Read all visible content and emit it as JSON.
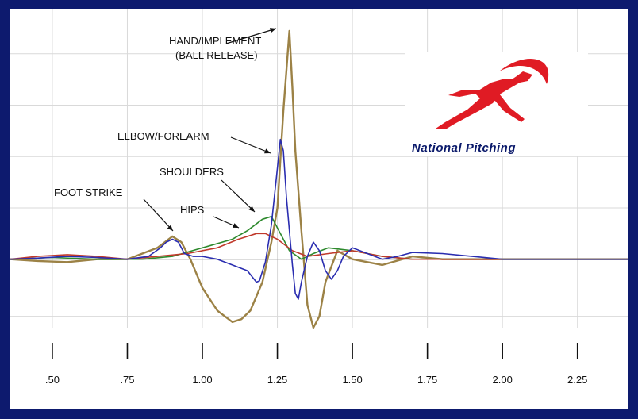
{
  "chart_data": {
    "type": "line",
    "title": "",
    "xlabel": "",
    "ylabel": "",
    "xlim": [
      0.36,
      2.42
    ],
    "ylim": [
      -1.2,
      4.0
    ],
    "grid": true,
    "x_ticks": [
      0.5,
      0.75,
      1.0,
      1.25,
      1.5,
      1.75,
      2.0,
      2.25
    ],
    "x_tick_labels": [
      ".50",
      ".75",
      "1.00",
      "1.25",
      "1.50",
      "1.75",
      "2.00",
      "2.25"
    ],
    "series": [
      {
        "color": "#2a2db0",
        "points": [
          [
            0.36,
            0.0
          ],
          [
            0.45,
            0.02
          ],
          [
            0.55,
            0.05
          ],
          [
            0.65,
            0.03
          ],
          [
            0.75,
            0.0
          ],
          [
            0.82,
            0.05
          ],
          [
            0.86,
            0.2
          ],
          [
            0.88,
            0.3
          ],
          [
            0.9,
            0.35
          ],
          [
            0.92,
            0.3
          ],
          [
            0.94,
            0.1
          ],
          [
            0.97,
            0.05
          ],
          [
            1.0,
            0.05
          ],
          [
            1.05,
            0.0
          ],
          [
            1.1,
            -0.1
          ],
          [
            1.15,
            -0.2
          ],
          [
            1.18,
            -0.4
          ],
          [
            1.19,
            -0.38
          ],
          [
            1.21,
            -0.05
          ],
          [
            1.23,
            0.6
          ],
          [
            1.25,
            1.6
          ],
          [
            1.26,
            2.1
          ],
          [
            1.27,
            1.9
          ],
          [
            1.28,
            1.1
          ],
          [
            1.3,
            -0.1
          ],
          [
            1.31,
            -0.6
          ],
          [
            1.32,
            -0.7
          ],
          [
            1.33,
            -0.4
          ],
          [
            1.35,
            0.05
          ],
          [
            1.37,
            0.3
          ],
          [
            1.39,
            0.15
          ],
          [
            1.41,
            -0.2
          ],
          [
            1.43,
            -0.35
          ],
          [
            1.45,
            -0.2
          ],
          [
            1.47,
            0.05
          ],
          [
            1.5,
            0.2
          ],
          [
            1.55,
            0.1
          ],
          [
            1.6,
            0.0
          ],
          [
            1.65,
            0.05
          ],
          [
            1.7,
            0.12
          ],
          [
            1.8,
            0.1
          ],
          [
            1.9,
            0.05
          ],
          [
            2.0,
            0.0
          ],
          [
            2.2,
            0.0
          ],
          [
            2.42,
            0.0
          ]
        ]
      },
      {
        "color": "#9c8246",
        "points": [
          [
            0.36,
            0.0
          ],
          [
            0.45,
            -0.03
          ],
          [
            0.55,
            -0.05
          ],
          [
            0.65,
            0.0
          ],
          [
            0.75,
            0.0
          ],
          [
            0.85,
            0.2
          ],
          [
            0.9,
            0.4
          ],
          [
            0.93,
            0.3
          ],
          [
            0.96,
            0.0
          ],
          [
            1.0,
            -0.5
          ],
          [
            1.05,
            -0.9
          ],
          [
            1.1,
            -1.1
          ],
          [
            1.13,
            -1.05
          ],
          [
            1.16,
            -0.9
          ],
          [
            1.2,
            -0.4
          ],
          [
            1.23,
            0.3
          ],
          [
            1.25,
            0.9
          ],
          [
            1.27,
            2.6
          ],
          [
            1.29,
            4.0
          ],
          [
            1.3,
            3.0
          ],
          [
            1.31,
            1.9
          ],
          [
            1.33,
            0.5
          ],
          [
            1.35,
            -0.8
          ],
          [
            1.37,
            -1.2
          ],
          [
            1.39,
            -1.0
          ],
          [
            1.41,
            -0.4
          ],
          [
            1.45,
            0.15
          ],
          [
            1.5,
            0.0
          ],
          [
            1.6,
            -0.1
          ],
          [
            1.7,
            0.05
          ],
          [
            1.8,
            0.0
          ],
          [
            2.0,
            0.0
          ],
          [
            2.42,
            0.0
          ]
        ]
      },
      {
        "color": "#2e8a2e",
        "points": [
          [
            0.36,
            0.0
          ],
          [
            0.5,
            0.03
          ],
          [
            0.65,
            0.0
          ],
          [
            0.8,
            0.0
          ],
          [
            0.9,
            0.05
          ],
          [
            1.0,
            0.2
          ],
          [
            1.1,
            0.35
          ],
          [
            1.15,
            0.5
          ],
          [
            1.2,
            0.7
          ],
          [
            1.23,
            0.75
          ],
          [
            1.26,
            0.45
          ],
          [
            1.29,
            0.15
          ],
          [
            1.33,
            0.0
          ],
          [
            1.37,
            0.1
          ],
          [
            1.42,
            0.2
          ],
          [
            1.5,
            0.15
          ],
          [
            1.6,
            0.05
          ],
          [
            1.7,
            0.0
          ],
          [
            2.0,
            0.0
          ],
          [
            2.42,
            0.0
          ]
        ]
      },
      {
        "color": "#c0392b",
        "points": [
          [
            0.36,
            0.0
          ],
          [
            0.45,
            0.05
          ],
          [
            0.55,
            0.08
          ],
          [
            0.65,
            0.05
          ],
          [
            0.75,
            0.0
          ],
          [
            0.85,
            0.05
          ],
          [
            0.95,
            0.1
          ],
          [
            1.05,
            0.2
          ],
          [
            1.12,
            0.35
          ],
          [
            1.18,
            0.45
          ],
          [
            1.21,
            0.45
          ],
          [
            1.25,
            0.35
          ],
          [
            1.3,
            0.15
          ],
          [
            1.35,
            0.05
          ],
          [
            1.42,
            0.1
          ],
          [
            1.5,
            0.15
          ],
          [
            1.6,
            0.05
          ],
          [
            1.7,
            0.0
          ],
          [
            2.0,
            0.0
          ],
          [
            2.42,
            0.0
          ]
        ]
      }
    ],
    "annotations": [
      {
        "lines": [
          "HAND/IMPLEMENT",
          "(BALL RELEASE)"
        ]
      },
      {
        "lines": [
          "ELBOW/FOREARM"
        ]
      },
      {
        "lines": [
          "SHOULDERS"
        ]
      },
      {
        "lines": [
          "HIPS"
        ]
      },
      {
        "lines": [
          "FOOT STRIKE"
        ]
      }
    ]
  },
  "logo": {
    "text": "National Pitching",
    "red": "#e01b24",
    "blue": "#0b1a6b"
  }
}
